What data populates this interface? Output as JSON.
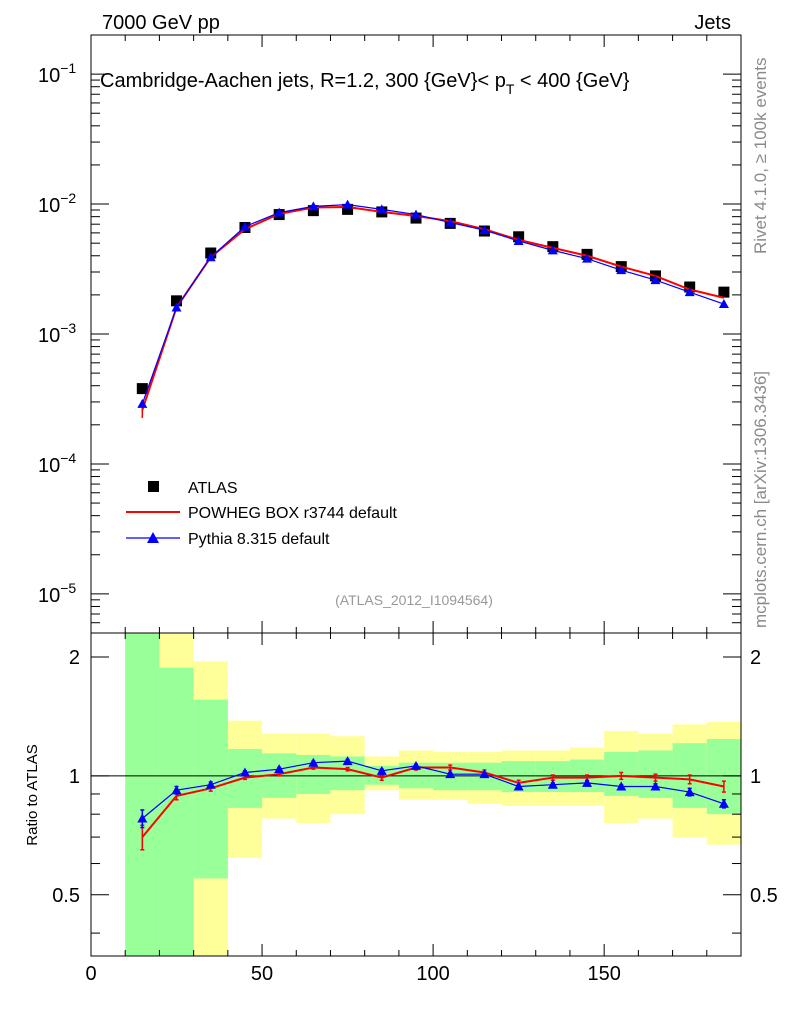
{
  "header": {
    "left": "7000 GeV pp",
    "right": "Jets"
  },
  "side_labels": {
    "rivet": "Rivet 4.1.0, ≥ 100k events",
    "site": "mcplots.cern.ch [arXiv:1306.3436]"
  },
  "chart_data": {
    "type": "scatter",
    "title": "Cambridge-Aachen jets, R=1.2, 300 {GeV}< p_T < 400 {GeV}",
    "watermark": "(ATLAS_2012_I1094564)",
    "x": [
      15,
      25,
      35,
      45,
      55,
      65,
      75,
      85,
      95,
      105,
      115,
      125,
      135,
      145,
      155,
      165,
      175,
      185
    ],
    "xlim": [
      0,
      190
    ],
    "x_ticks": [
      0,
      50,
      100,
      150
    ],
    "top_panel": {
      "yscale": "log",
      "ylim": [
        5e-06,
        0.2
      ],
      "y_ticks": [
        {
          "value": 0.1,
          "mantissa": "10",
          "exponent": "−1"
        },
        {
          "value": 0.01,
          "mantissa": "10",
          "exponent": "−2"
        },
        {
          "value": 0.001,
          "mantissa": "10",
          "exponent": "−3"
        },
        {
          "value": 0.0001,
          "mantissa": "10",
          "exponent": "−4"
        },
        {
          "value": 1e-05,
          "mantissa": "10",
          "exponent": "−5"
        }
      ],
      "series": [
        {
          "name": "ATLAS",
          "marker": "square",
          "color": "#000000",
          "values": [
            0.00038,
            0.0018,
            0.0042,
            0.0066,
            0.0083,
            0.0089,
            0.0091,
            0.0087,
            0.0078,
            0.0071,
            0.0062,
            0.0056,
            0.0047,
            0.0041,
            0.0033,
            0.0028,
            0.0023,
            0.0021
          ]
        },
        {
          "name": "POWHEG BOX r3744 default",
          "marker": "line",
          "color": "#ff0000",
          "values": [
            0.00026,
            0.0016,
            0.0039,
            0.0064,
            0.0084,
            0.0094,
            0.0095,
            0.0087,
            0.0081,
            0.0074,
            0.0064,
            0.0053,
            0.0046,
            0.004,
            0.0033,
            0.0028,
            0.0022,
            0.0019
          ]
        },
        {
          "name": "Pythia 8.315 default",
          "marker": "triangle",
          "color": "#0000ff",
          "values": [
            0.00029,
            0.0016,
            0.0039,
            0.0067,
            0.0086,
            0.0096,
            0.0099,
            0.0091,
            0.0083,
            0.0072,
            0.0063,
            0.0052,
            0.0044,
            0.0038,
            0.0031,
            0.0026,
            0.0021,
            0.0017
          ]
        }
      ]
    },
    "ratio_panel": {
      "ylabel": "Ratio to ATLAS",
      "ylim": [
        0.35,
        2.3
      ],
      "y_ticks": [
        {
          "value": 0.5,
          "label": "0.5"
        },
        {
          "value": 1,
          "label": "1"
        },
        {
          "value": 2,
          "label": "2"
        }
      ],
      "band_edges": [
        10,
        20,
        30,
        40,
        50,
        60,
        70,
        80,
        90,
        100,
        110,
        120,
        130,
        140,
        150,
        160,
        170,
        180,
        190
      ],
      "yellow_band": [
        {
          "lo": 0.35,
          "hi": 2.3
        },
        {
          "lo": 0.35,
          "hi": 2.3
        },
        {
          "lo": 0.35,
          "hi": 1.95
        },
        {
          "lo": 0.62,
          "hi": 1.38
        },
        {
          "lo": 0.78,
          "hi": 1.28
        },
        {
          "lo": 0.76,
          "hi": 1.28
        },
        {
          "lo": 0.8,
          "hi": 1.26
        },
        {
          "lo": 0.92,
          "hi": 1.12
        },
        {
          "lo": 0.87,
          "hi": 1.16
        },
        {
          "lo": 0.87,
          "hi": 1.15
        },
        {
          "lo": 0.85,
          "hi": 1.15
        },
        {
          "lo": 0.84,
          "hi": 1.16
        },
        {
          "lo": 0.84,
          "hi": 1.16
        },
        {
          "lo": 0.84,
          "hi": 1.18
        },
        {
          "lo": 0.76,
          "hi": 1.3
        },
        {
          "lo": 0.78,
          "hi": 1.28
        },
        {
          "lo": 0.7,
          "hi": 1.35
        },
        {
          "lo": 0.67,
          "hi": 1.37
        }
      ],
      "green_band": [
        {
          "lo": 0.35,
          "hi": 2.3
        },
        {
          "lo": 0.35,
          "hi": 1.88
        },
        {
          "lo": 0.55,
          "hi": 1.56
        },
        {
          "lo": 0.83,
          "hi": 1.17
        },
        {
          "lo": 0.88,
          "hi": 1.14
        },
        {
          "lo": 0.9,
          "hi": 1.13
        },
        {
          "lo": 0.92,
          "hi": 1.12
        },
        {
          "lo": 0.95,
          "hi": 1.06
        },
        {
          "lo": 0.93,
          "hi": 1.08
        },
        {
          "lo": 0.92,
          "hi": 1.08
        },
        {
          "lo": 0.92,
          "hi": 1.08
        },
        {
          "lo": 0.91,
          "hi": 1.09
        },
        {
          "lo": 0.91,
          "hi": 1.09
        },
        {
          "lo": 0.91,
          "hi": 1.1
        },
        {
          "lo": 0.89,
          "hi": 1.15
        },
        {
          "lo": 0.88,
          "hi": 1.16
        },
        {
          "lo": 0.83,
          "hi": 1.21
        },
        {
          "lo": 0.8,
          "hi": 1.24
        }
      ],
      "series": [
        {
          "name": "POWHEG BOX r3744 default",
          "color": "#ff0000",
          "values": [
            0.7,
            0.89,
            0.93,
            0.99,
            1.01,
            1.05,
            1.04,
            0.99,
            1.05,
            1.05,
            1.02,
            0.96,
            0.99,
            0.99,
            1.0,
            0.99,
            0.98,
            0.94
          ],
          "errors": [
            0.05,
            0.02,
            0.015,
            0.01,
            0.01,
            0.01,
            0.01,
            0.015,
            0.015,
            0.015,
            0.015,
            0.015,
            0.015,
            0.015,
            0.02,
            0.02,
            0.025,
            0.03
          ]
        },
        {
          "name": "Pythia 8.315 default",
          "color": "#0000ff",
          "values": [
            0.78,
            0.92,
            0.95,
            1.02,
            1.04,
            1.08,
            1.09,
            1.03,
            1.06,
            1.01,
            1.01,
            0.94,
            0.95,
            0.96,
            0.94,
            0.94,
            0.91,
            0.85
          ],
          "errors": [
            0.04,
            0.02,
            0.015,
            0.01,
            0.01,
            0.01,
            0.01,
            0.01,
            0.01,
            0.01,
            0.01,
            0.01,
            0.01,
            0.01,
            0.01,
            0.015,
            0.02,
            0.02
          ]
        }
      ]
    }
  }
}
